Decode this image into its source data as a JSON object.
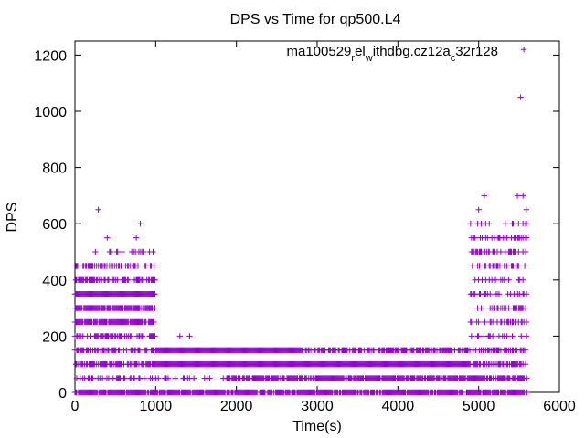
{
  "chart_data": {
    "type": "scatter",
    "title": "DPS vs Time for qp500.L4",
    "xlabel": "Time(s)",
    "ylabel": "DPS",
    "xlim": [
      0,
      6000
    ],
    "ylim": [
      0,
      1250
    ],
    "xticks": [
      0,
      1000,
      2000,
      3000,
      4000,
      5000,
      6000
    ],
    "yticks": [
      0,
      200,
      400,
      600,
      800,
      1000,
      1200
    ],
    "grid": false,
    "legend_position": "top-right",
    "marker": "plus",
    "series": [
      {
        "name_parts": [
          {
            "text": "ma100529",
            "sub": false
          },
          {
            "text": "r",
            "sub": true
          },
          {
            "text": "el",
            "sub": false
          },
          {
            "text": "w",
            "sub": true
          },
          {
            "text": "ithdbg.cz12a",
            "sub": false
          },
          {
            "text": "c",
            "sub": true
          },
          {
            "text": "32r128",
            "sub": false
          }
        ],
        "color": "#9400d3",
        "segments": [
          {
            "level": 0,
            "x0": 0,
            "x1": 5600,
            "density": 0.9
          },
          {
            "level": 50,
            "x0": 0,
            "x1": 1000,
            "density": 0.35
          },
          {
            "level": 50,
            "x0": 1900,
            "x1": 5600,
            "density": 0.85
          },
          {
            "level": 50,
            "x0": 1000,
            "x1": 1900,
            "density": 0.25
          },
          {
            "level": 100,
            "x0": 0,
            "x1": 1000,
            "density": 0.7
          },
          {
            "level": 100,
            "x0": 1000,
            "x1": 4900,
            "density": 1.0
          },
          {
            "level": 100,
            "x0": 4900,
            "x1": 5600,
            "density": 0.6
          },
          {
            "level": 150,
            "x0": 0,
            "x1": 1000,
            "density": 0.55
          },
          {
            "level": 150,
            "x0": 1000,
            "x1": 2800,
            "density": 1.0
          },
          {
            "level": 150,
            "x0": 2800,
            "x1": 4900,
            "density": 0.7
          },
          {
            "level": 150,
            "x0": 4900,
            "x1": 5600,
            "density": 0.5
          },
          {
            "level": 200,
            "x0": 0,
            "x1": 1000,
            "density": 0.6
          },
          {
            "level": 200,
            "x0": 4900,
            "x1": 5600,
            "density": 0.2
          },
          {
            "level": 250,
            "x0": 0,
            "x1": 1000,
            "density": 0.9
          },
          {
            "level": 250,
            "x0": 4900,
            "x1": 5600,
            "density": 0.4
          },
          {
            "level": 300,
            "x0": 0,
            "x1": 1000,
            "density": 0.95
          },
          {
            "level": 300,
            "x0": 4900,
            "x1": 5600,
            "density": 0.4
          },
          {
            "level": 350,
            "x0": 0,
            "x1": 1000,
            "density": 1.0
          },
          {
            "level": 350,
            "x0": 4900,
            "x1": 5600,
            "density": 0.4
          },
          {
            "level": 400,
            "x0": 0,
            "x1": 1000,
            "density": 0.6
          },
          {
            "level": 400,
            "x0": 4900,
            "x1": 5600,
            "density": 0.4
          },
          {
            "level": 450,
            "x0": 0,
            "x1": 1000,
            "density": 0.45
          },
          {
            "level": 450,
            "x0": 4900,
            "x1": 5600,
            "density": 0.35
          },
          {
            "level": 500,
            "x0": 0,
            "x1": 1000,
            "density": 0.15
          },
          {
            "level": 500,
            "x0": 4900,
            "x1": 5600,
            "density": 0.35
          },
          {
            "level": 550,
            "x0": 4900,
            "x1": 5600,
            "density": 0.3
          },
          {
            "level": 600,
            "x0": 4900,
            "x1": 5600,
            "density": 0.2
          }
        ],
        "extra_points": [
          {
            "x": 290,
            "y": 650
          },
          {
            "x": 400,
            "y": 550
          },
          {
            "x": 760,
            "y": 550
          },
          {
            "x": 810,
            "y": 600
          },
          {
            "x": 1300,
            "y": 200
          },
          {
            "x": 1420,
            "y": 200
          },
          {
            "x": 5000,
            "y": 650
          },
          {
            "x": 5070,
            "y": 700
          },
          {
            "x": 5480,
            "y": 700
          },
          {
            "x": 5550,
            "y": 700
          },
          {
            "x": 5590,
            "y": 650
          },
          {
            "x": 5520,
            "y": 1050
          },
          {
            "x": 5560,
            "y": 1220
          }
        ]
      }
    ]
  }
}
